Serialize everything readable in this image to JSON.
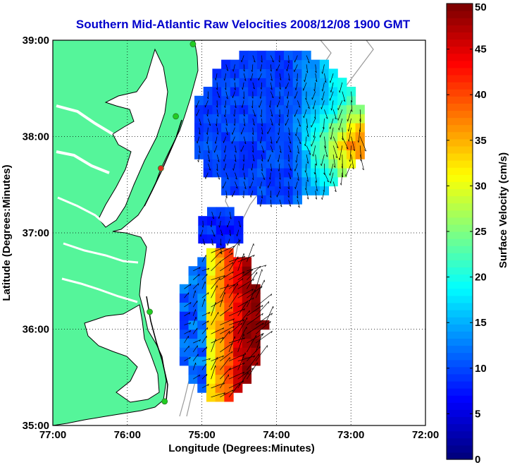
{
  "chart_data": {
    "type": "heatmap",
    "title": "Southern Mid-Atlantic Raw Velocities 2008/12/08 1900 GMT",
    "xlabel": "Longitude (Degrees:Minutes)",
    "ylabel": "Latitude (Degrees:Minutes)",
    "xlim": [
      -77,
      -72
    ],
    "ylim": [
      35,
      39
    ],
    "x_ticks": [
      -77,
      -76,
      -75,
      -74,
      -73,
      -72
    ],
    "x_tick_labels": [
      "77:00",
      "76:00",
      "75:00",
      "74:00",
      "73:00",
      "72:00"
    ],
    "y_ticks": [
      35,
      36,
      37,
      38,
      39
    ],
    "y_tick_labels": [
      "35:00",
      "36:00",
      "37:00",
      "38:00",
      "39:00"
    ],
    "grid": true,
    "colorbar": {
      "label": "Surface Velocity (cm/s)",
      "range": [
        0,
        50
      ],
      "ticks": [
        0,
        5,
        10,
        15,
        20,
        25,
        30,
        35,
        40,
        45,
        50
      ],
      "colormap": "jet"
    },
    "land_color": "#55f59a",
    "background": "#ffffff",
    "stations": [
      {
        "lon": -75.12,
        "lat": 38.96,
        "color": "#22cc22"
      },
      {
        "lon": -75.35,
        "lat": 38.21,
        "color": "#22cc22"
      },
      {
        "lon": -75.55,
        "lat": 37.67,
        "color": "#e03020"
      },
      {
        "lon": -75.7,
        "lat": 36.18,
        "color": "#22cc22"
      },
      {
        "lon": -75.5,
        "lat": 35.25,
        "color": "#22cc22"
      }
    ],
    "regions": [
      {
        "name": "north_field",
        "lon_range": [
          -75.1,
          -72.9
        ],
        "lat_range": [
          37.3,
          38.8
        ],
        "speed_low": 8,
        "speed_high": 35,
        "dominant_direction": "south"
      },
      {
        "name": "middle_patch",
        "lon_range": [
          -75.05,
          -74.45
        ],
        "lat_range": [
          36.8,
          37.2
        ],
        "speed_low": 6,
        "speed_high": 10,
        "dominant_direction": "south"
      },
      {
        "name": "south_field",
        "lon_range": [
          -75.3,
          -74.2
        ],
        "lat_range": [
          35.25,
          36.75
        ],
        "speed_low": 8,
        "speed_high": 50,
        "dominant_direction": "northeast"
      }
    ]
  }
}
